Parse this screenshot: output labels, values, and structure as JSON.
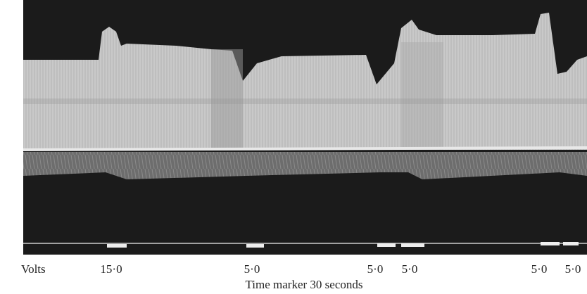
{
  "figure": {
    "y_label": "Volts",
    "markers": [
      "15·0",
      "5·0",
      "5·0",
      "5·0",
      "5·0",
      "5·0"
    ],
    "caption": "Time marker 30 seconds"
  }
}
